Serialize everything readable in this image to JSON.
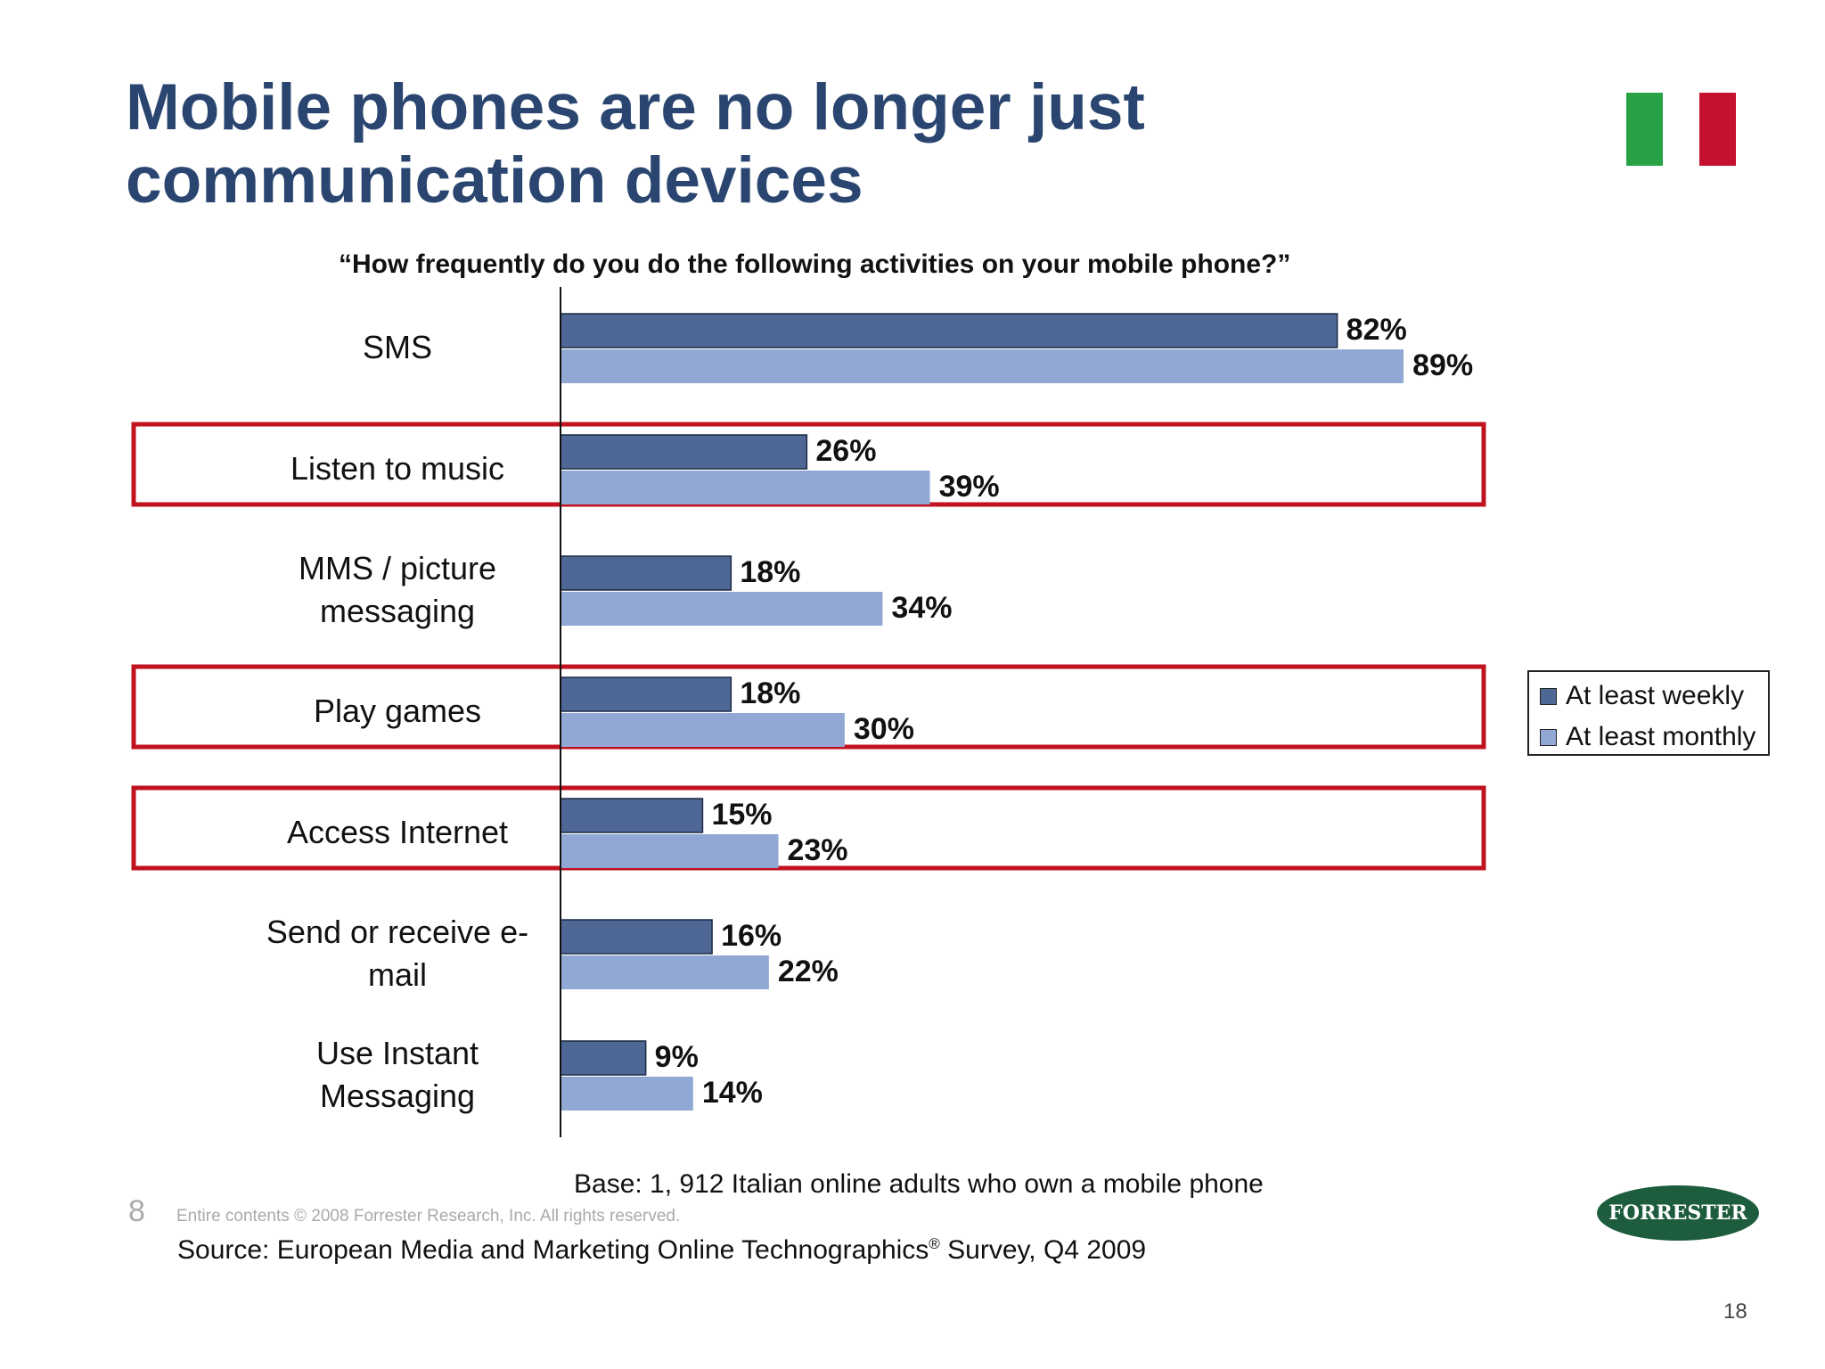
{
  "title": "Mobile phones are no longer just communication devices",
  "brand_colors": {
    "title": "#2a4670",
    "weekly": "#4f6795",
    "monthly": "#91a8d5",
    "highlight": "#c1121f"
  },
  "flag_colors": [
    "#27a244",
    "#ffffff",
    "#c4112f"
  ],
  "logo_text": "FORRESTER",
  "chart_data": {
    "type": "bar",
    "orientation": "horizontal",
    "title": "“How frequently do you do the following activities on your mobile phone?”",
    "categories": [
      "SMS",
      "Listen to music",
      "MMS / picture messaging",
      "Play games",
      "Access Internet",
      "Send or receive e-mail",
      "Use Instant Messaging"
    ],
    "category_lines": [
      [
        "SMS"
      ],
      [
        "Listen to music"
      ],
      [
        "MMS / picture",
        "messaging"
      ],
      [
        "Play games"
      ],
      [
        "Access Internet"
      ],
      [
        "Send or receive e-",
        "mail"
      ],
      [
        "Use Instant",
        "Messaging"
      ]
    ],
    "highlighted": [
      "Listen to music",
      "Play games",
      "Access Internet"
    ],
    "series": [
      {
        "name": "At least weekly",
        "color": "#4f6795",
        "values": [
          82,
          26,
          18,
          18,
          15,
          16,
          9
        ]
      },
      {
        "name": "At least monthly",
        "color": "#91a8d5",
        "values": [
          89,
          39,
          34,
          30,
          23,
          22,
          14
        ]
      }
    ],
    "value_suffix": "%",
    "xlim": [
      0,
      100
    ],
    "legend_position": "right",
    "grid": false
  },
  "footer": {
    "base": "Base: 1, 912 Italian online adults who own a mobile phone",
    "page_left": "8",
    "copyright": "Entire contents © 2008  Forrester Research, Inc. All rights reserved.",
    "source": "Source: European Media and Marketing Online Technographics",
    "source_mark": "®",
    "source_tail": " Survey, Q4 2009",
    "page_number": "18"
  }
}
